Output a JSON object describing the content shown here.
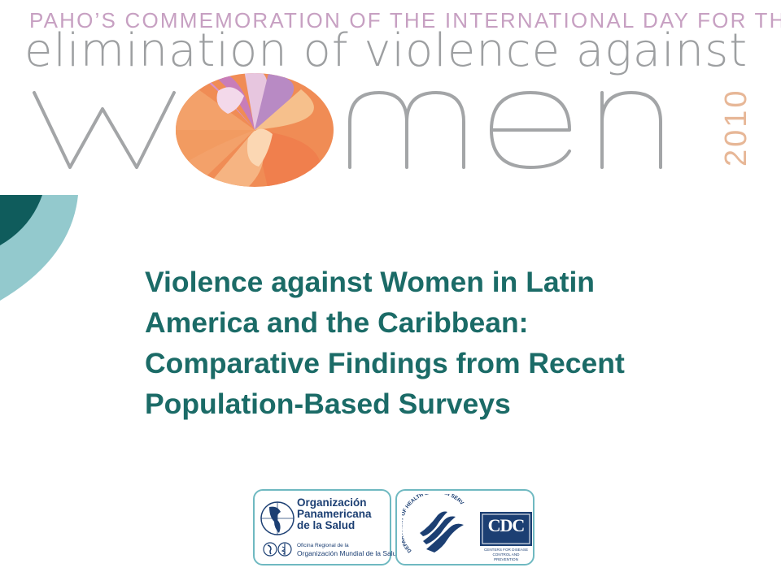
{
  "header": {
    "line1": "PAHO’S COMMEMORATION OF THE INTERNATIONAL DAY FOR THE",
    "line2": "elimination of violence against",
    "word": "women",
    "year": "2010"
  },
  "title": {
    "lines": [
      "Violence against Women in Latin",
      "America and the Caribbean:",
      "Comparative Findings from Recent",
      "Population-Based Surveys"
    ]
  },
  "logos": {
    "paho": {
      "name_lines": [
        "Organización",
        "Panamericana",
        "de la Salud"
      ],
      "subtitle_line1": "Oficina Regional de la",
      "subtitle_line2": "Organización Mundial de la Salud"
    },
    "hhs": {
      "arc_text": "DEPARTMENT OF HEALTH & HUMAN SERVICES USA"
    },
    "cdc": {
      "text": "CDC",
      "sub_line1": "CENTERS FOR DISEASE",
      "sub_line2": "CONTROL AND PREVENTION"
    }
  },
  "colors": {
    "title": "#1b6b67",
    "header_pink": "#c7a0c2",
    "header_gray": "#9d9fa1",
    "year_orange": "#e7b797",
    "corner_dark_teal": "#0f5c5c",
    "corner_light_teal": "#93c9cd",
    "logo_border": "#6fb9c1",
    "logo_navy": "#1c3f73"
  }
}
